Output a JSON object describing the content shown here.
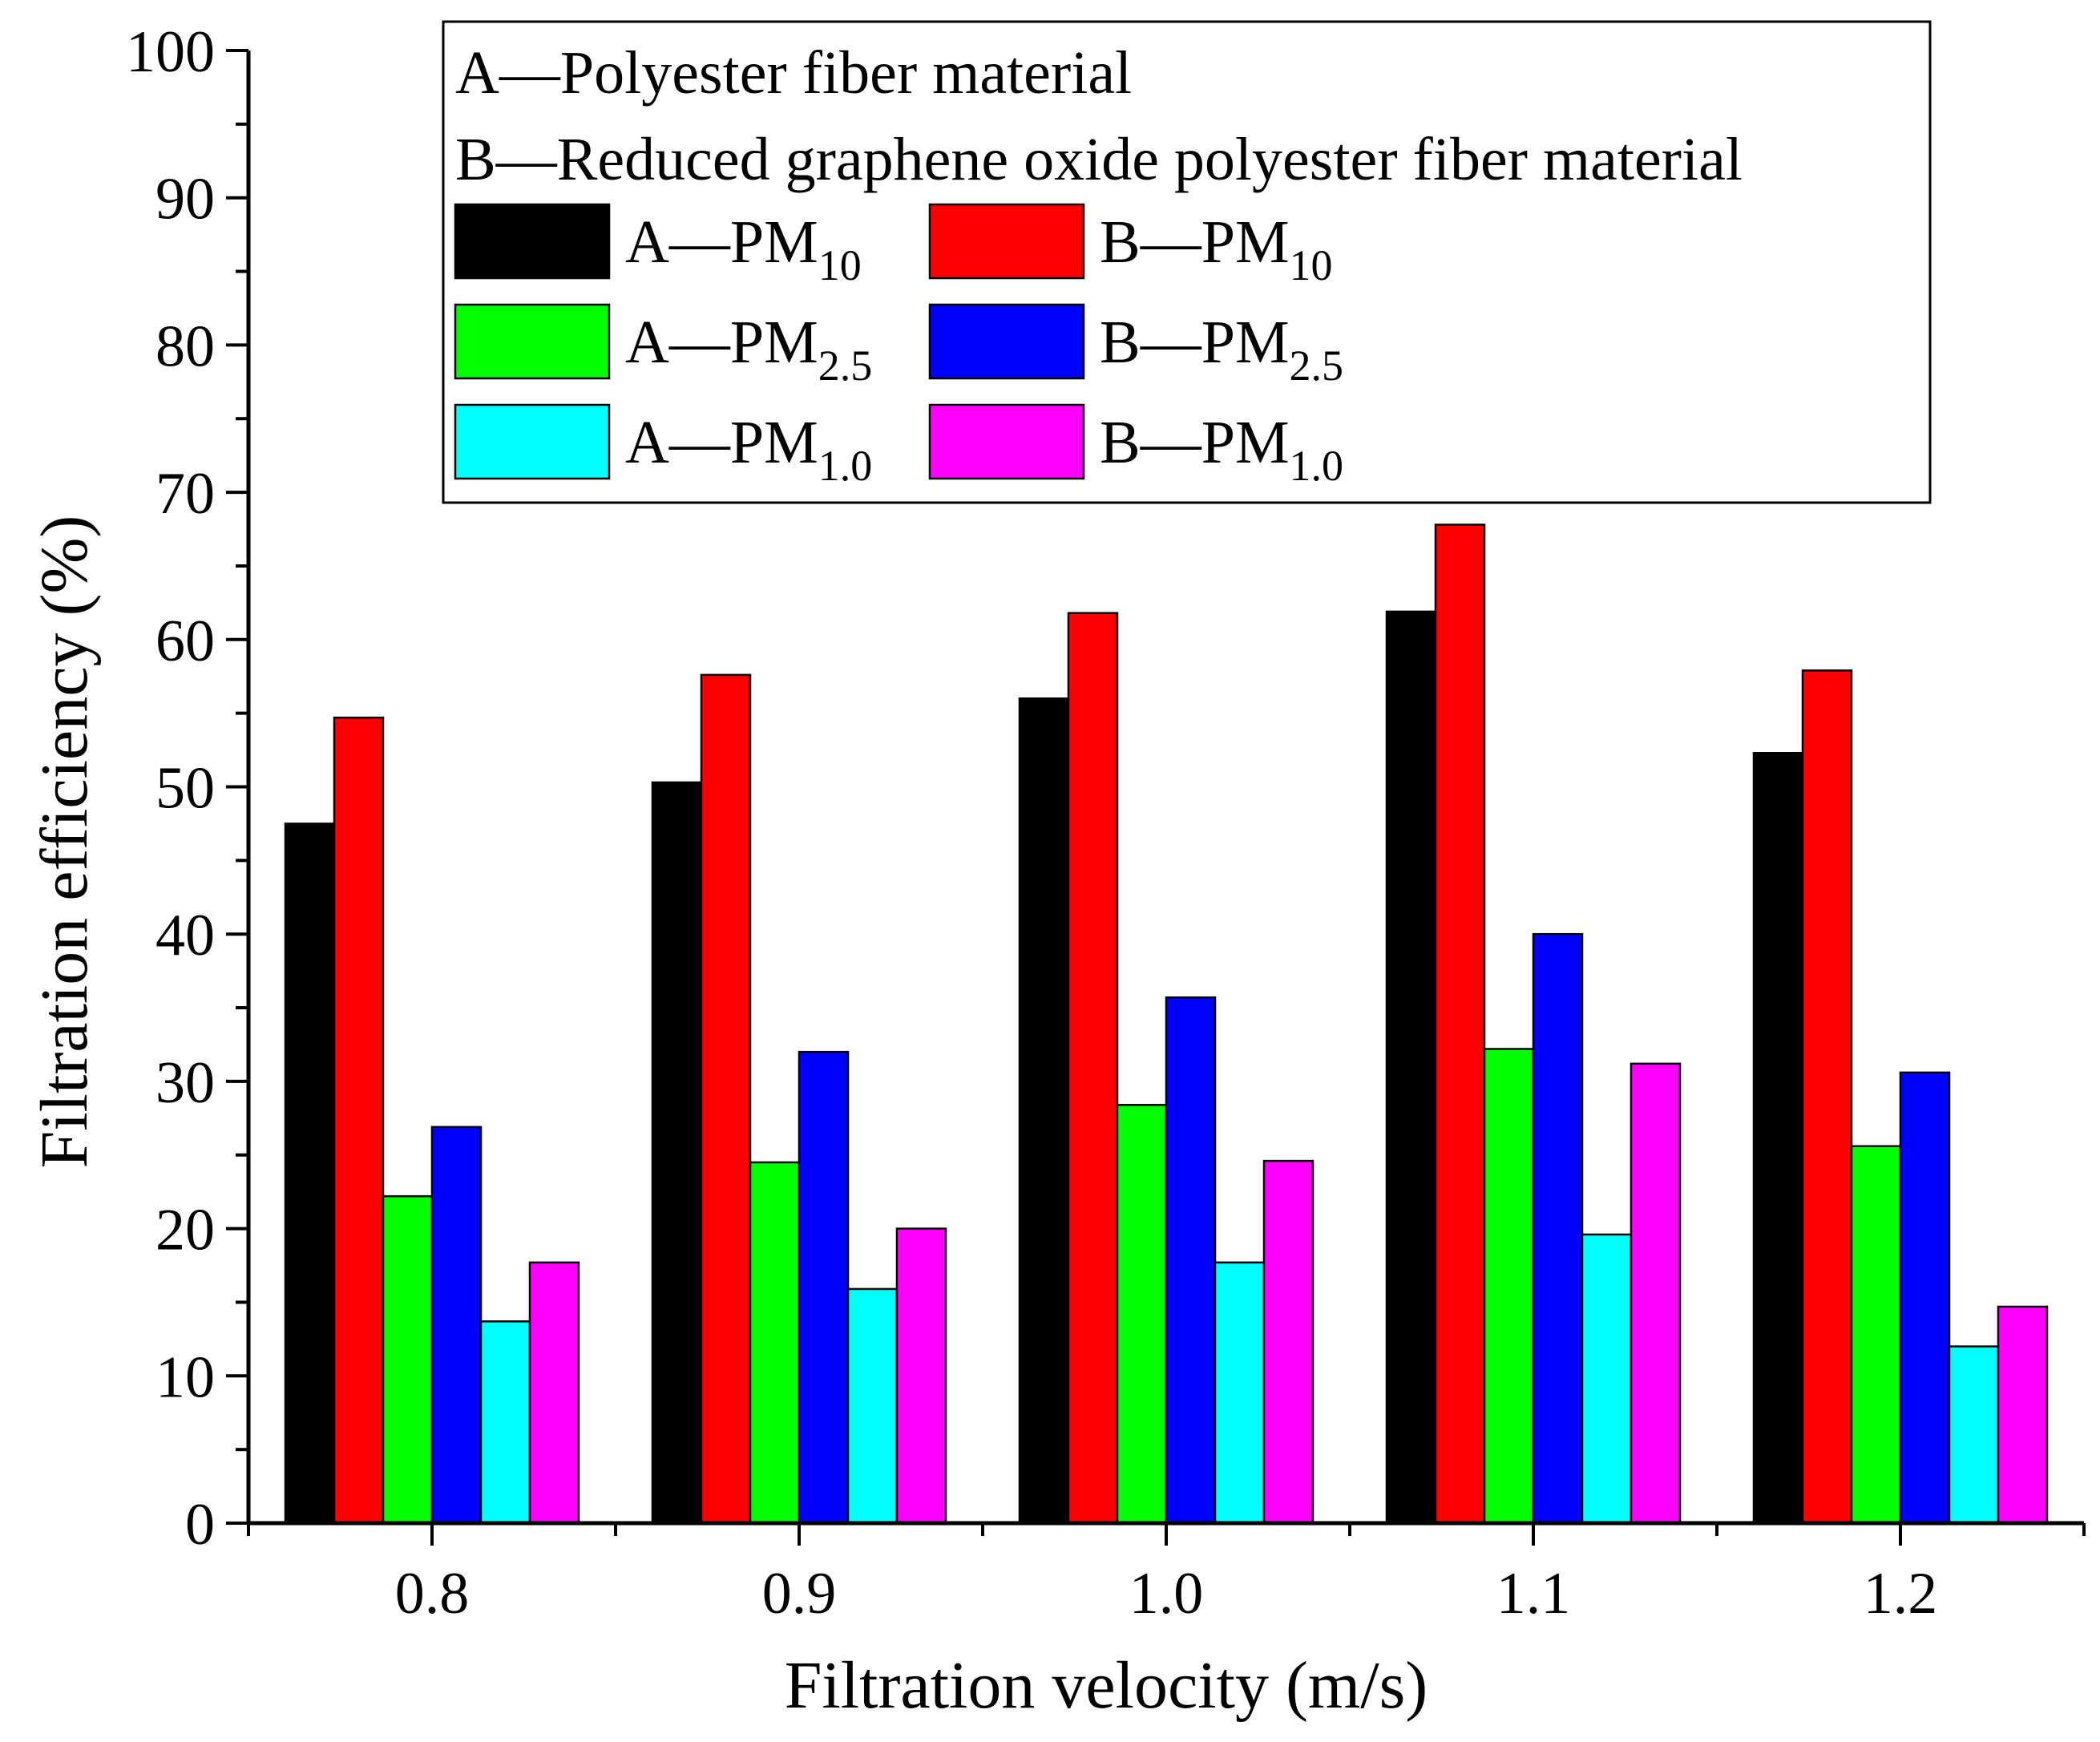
{
  "chart_data": {
    "type": "bar",
    "xlabel": "Filtration velocity (m/s)",
    "ylabel": "Filtration efficiency (%)",
    "ylim": [
      0,
      100
    ],
    "y_major_ticks": [
      0,
      10,
      20,
      30,
      40,
      50,
      60,
      70,
      80,
      90,
      100
    ],
    "categories": [
      "0.8",
      "0.9",
      "1.0",
      "1.1",
      "1.2"
    ],
    "grid": false,
    "legend_position": "top",
    "legend_notes": [
      "A—Polyester fiber material",
      "B—Reduced graphene oxide polyester fiber material"
    ],
    "series": [
      {
        "name": "A—PM",
        "sub": "10",
        "color": "#000000",
        "values": [
          47.5,
          50.3,
          56.0,
          61.9,
          52.3
        ]
      },
      {
        "name": "B—PM",
        "sub": "10",
        "color": "#ff0000",
        "values": [
          54.7,
          57.6,
          61.8,
          67.8,
          57.9
        ]
      },
      {
        "name": "A—PM",
        "sub": "2.5",
        "color": "#00ff00",
        "values": [
          22.2,
          24.5,
          28.4,
          32.2,
          25.6
        ]
      },
      {
        "name": "B—PM",
        "sub": "2.5",
        "color": "#0000ff",
        "values": [
          26.9,
          32.0,
          35.7,
          40.0,
          30.6
        ]
      },
      {
        "name": "A—PM",
        "sub": "1.0",
        "color": "#00ffff",
        "values": [
          13.7,
          15.9,
          17.7,
          19.6,
          12.0
        ]
      },
      {
        "name": "B—PM",
        "sub": "1.0",
        "color": "#ff00ff",
        "values": [
          17.7,
          20.0,
          24.6,
          31.2,
          14.7
        ]
      }
    ]
  }
}
